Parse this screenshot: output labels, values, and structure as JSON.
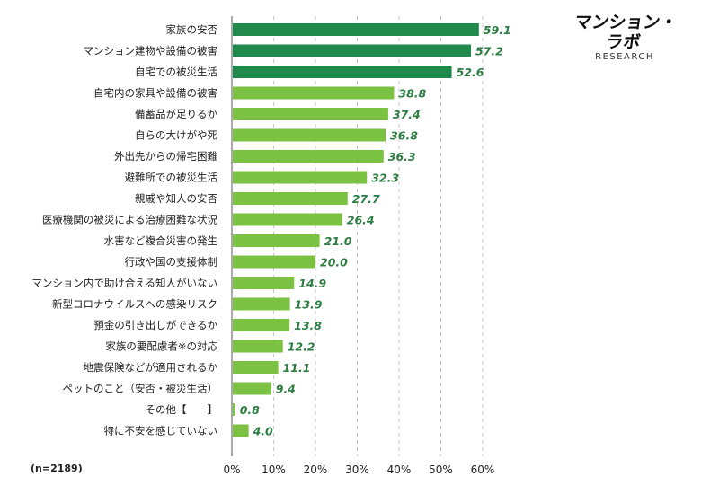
{
  "brand": {
    "name": "マンション・ラボ",
    "sub": "RESEARCH"
  },
  "sample": "(n=2189)",
  "colors": {
    "highlight": "#1f8a4c",
    "normal": "#7cc242",
    "value_text": "#2e7d43"
  },
  "chart_data": {
    "type": "bar",
    "orientation": "horizontal",
    "categories": [
      "家族の安否",
      "マンション建物や設備の被害",
      "自宅での被災生活",
      "自宅内の家具や設備の被害",
      "備蓄品が足りるか",
      "自らの大けがや死",
      "外出先からの帰宅困難",
      "避難所での被災生活",
      "親戚や知人の安否",
      "医療機関の被災による治療困難な状況",
      "水害など複合災害の発生",
      "行政や国の支援体制",
      "マンション内で助け合える知人がいない",
      "新型コロナウイルスへの感染リスク",
      "預金の引き出しができるか",
      "家族の要配慮者※の対応",
      "地震保険などが適用されるか",
      "ペットのこと（安否・被災生活）",
      "その他【　　】",
      "特に不安を感じていない"
    ],
    "values": [
      59.1,
      57.2,
      52.6,
      38.8,
      37.4,
      36.8,
      36.3,
      32.3,
      27.7,
      26.4,
      21.0,
      20.0,
      14.9,
      13.9,
      13.8,
      12.2,
      11.1,
      9.4,
      0.8,
      4.0
    ],
    "value_labels": [
      "59.1",
      "57.2",
      "52.6",
      "38.8",
      "37.4",
      "36.8",
      "36.3",
      "32.3",
      "27.7",
      "26.4",
      "21.0",
      "20.0",
      "14.9",
      "13.9",
      "13.8",
      "12.2",
      "11.1",
      "9.4",
      "0.8",
      "4.0"
    ],
    "highlighted_count": 3,
    "xlim": [
      0,
      60
    ],
    "xticks": [
      0,
      10,
      20,
      30,
      40,
      50,
      60
    ],
    "xtick_labels": [
      "0%",
      "10%",
      "20%",
      "30%",
      "40%",
      "50%",
      "60%"
    ],
    "grid": true
  }
}
